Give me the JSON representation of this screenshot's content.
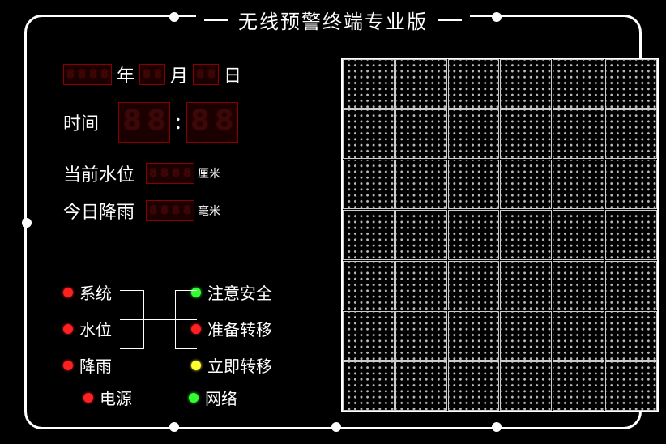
{
  "title": "无线预警终端专业版",
  "date": {
    "year_label": "年",
    "month_label": "月",
    "day_label": "日",
    "year": "8888",
    "month": "88",
    "day": "88"
  },
  "time": {
    "label": "时间",
    "hh": "88",
    "mm": "88",
    "hh_display": "88",
    "mm_display": "88"
  },
  "water": {
    "label": "当前水位",
    "value": "8888",
    "unit": "厘米"
  },
  "rain": {
    "label": "今日降雨",
    "value": "8888",
    "unit": "毫米"
  },
  "status": {
    "left": [
      {
        "label": "系统",
        "color": "red"
      },
      {
        "label": "水位",
        "color": "red"
      },
      {
        "label": "降雨",
        "color": "red"
      }
    ],
    "right": [
      {
        "label": "注意安全",
        "color": "green"
      },
      {
        "label": "准备转移",
        "color": "red"
      },
      {
        "label": "立即转移",
        "color": "yellow"
      }
    ],
    "bottom": [
      {
        "label": "电源",
        "color": "red"
      },
      {
        "label": "网络",
        "color": "green"
      }
    ]
  },
  "matrix": {
    "cols": 6,
    "rows": 7
  },
  "colors": {
    "panel_border": "#ffffff",
    "background": "#000000",
    "text": "#ffffff",
    "seg_dim": "#3a0808",
    "seg_border": "#880000"
  },
  "frame_dots_count": 8
}
